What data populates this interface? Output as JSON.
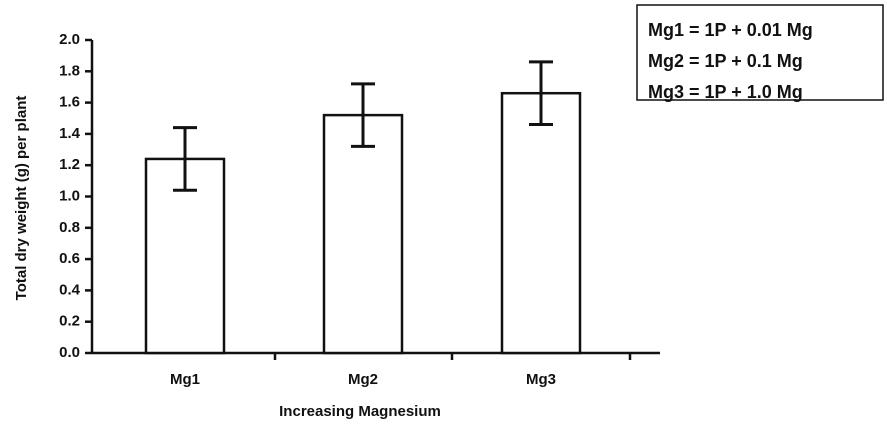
{
  "chart_data": {
    "type": "bar",
    "categories": [
      "Mg1",
      "Mg2",
      "Mg3"
    ],
    "values": [
      1.24,
      1.52,
      1.66
    ],
    "errors": [
      0.2,
      0.2,
      0.2
    ],
    "color": "#ffffff",
    "xlabel": "Increasing Magnesium",
    "ylabel": "Total dry weight (g) per plant",
    "ylim": [
      0,
      2
    ],
    "yticks": [
      {
        "value": 0,
        "label": "0.0"
      },
      0.2,
      0.4,
      0.6,
      0.8,
      {
        "value": 1,
        "label": "1.0"
      },
      1.2,
      1.4,
      1.6,
      1.8,
      {
        "value": 2,
        "label": "2.0"
      }
    ],
    "annotations": [
      "Mg1 = 1P + 0.01 Mg",
      "Mg2 = 1P + 0.1 Mg",
      "Mg3 = 1P + 1.0 Mg"
    ]
  }
}
